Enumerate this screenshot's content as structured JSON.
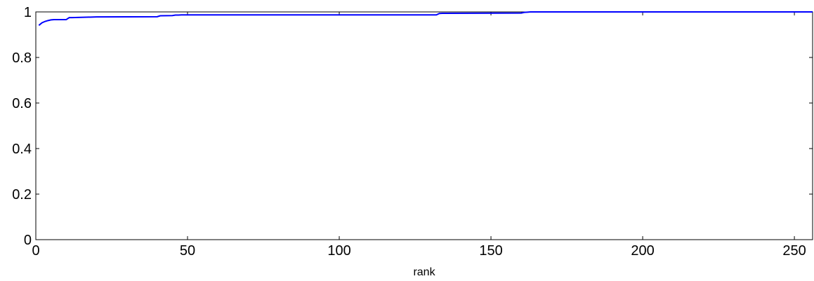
{
  "chart_data": {
    "type": "line",
    "title": "",
    "xlabel": "rank",
    "ylabel": "",
    "xlim": [
      0,
      256
    ],
    "ylim": [
      0,
      1
    ],
    "grid": false,
    "x_ticks": [
      0,
      50,
      100,
      150,
      200,
      250
    ],
    "y_ticks": [
      0,
      0.2,
      0.4,
      0.6,
      0.8,
      1
    ],
    "x_tick_labels": [
      "0",
      "50",
      "100",
      "150",
      "200",
      "250"
    ],
    "y_tick_labels": [
      "0",
      "0.2",
      "0.4",
      "0.6",
      "0.8",
      "1"
    ],
    "series": [
      {
        "color": "#0000ff",
        "x": [
          1,
          2,
          3,
          4,
          5,
          6,
          7,
          8,
          9,
          10,
          11,
          12,
          20,
          40,
          41,
          45,
          46,
          47,
          48,
          132,
          133,
          134,
          135,
          160,
          161,
          162,
          163,
          256
        ],
        "y": [
          0.941,
          0.952,
          0.958,
          0.962,
          0.965,
          0.966,
          0.966,
          0.966,
          0.966,
          0.966,
          0.975,
          0.975,
          0.978,
          0.979,
          0.983,
          0.984,
          0.986,
          0.986,
          0.987,
          0.987,
          0.993,
          0.994,
          0.994,
          0.995,
          0.998,
          0.999,
          1.0,
          1.0
        ]
      }
    ]
  }
}
